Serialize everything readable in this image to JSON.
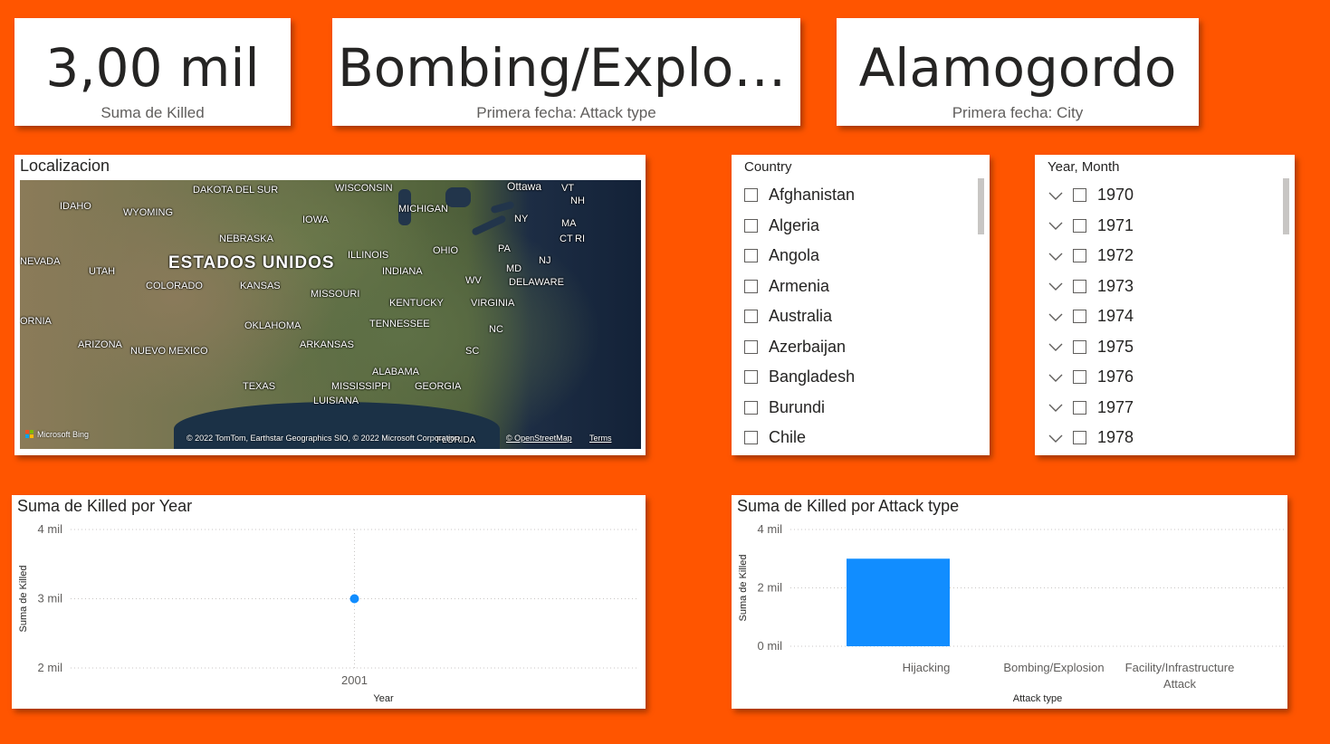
{
  "kpis": [
    {
      "value": "3,00 mil",
      "label": "Suma de Killed"
    },
    {
      "value": "Bombing/Explosi…",
      "label": "Primera fecha: Attack type"
    },
    {
      "value": "Alamogordo",
      "label": "Primera fecha: City"
    }
  ],
  "map": {
    "title": "Localizacion",
    "labels": {
      "idaho": "IDAHO",
      "wyoming": "WYOMING",
      "dakota_sur": "DAKOTA DEL SUR",
      "wisconsin": "WISCONSIN",
      "ottawa": "Ottawa",
      "vt": "VT",
      "nh": "NH",
      "michigan": "MICHIGAN",
      "iowa": "IOWA",
      "ny": "NY",
      "ma": "MA",
      "ct": "CT",
      "ri": "RI",
      "nebraska": "NEBRASKA",
      "nevada": "NEVADA",
      "utah": "UTAH",
      "estados_unidos": "ESTADOS UNIDOS",
      "illinois": "ILLINOIS",
      "ohio": "OHIO",
      "pa": "PA",
      "nj": "NJ",
      "md": "MD",
      "indiana": "INDIANA",
      "colorado": "COLORADO",
      "kansas": "KANSAS",
      "missouri": "MISSOURI",
      "wv": "WV",
      "delaware": "DELAWARE",
      "ornia": "ORNIA",
      "kentucky": "KENTUCKY",
      "virginia": "VIRGINIA",
      "oklahoma": "OKLAHOMA",
      "tennessee": "TENNESSEE",
      "nc": "NC",
      "arizona": "ARIZONA",
      "nuevo_mexico": "NUEVO MEXICO",
      "arkansas": "ARKANSAS",
      "sc": "SC",
      "alabama": "ALABAMA",
      "texas": "TEXAS",
      "mississippi": "MISSISSIPPI",
      "georgia": "GEORGIA",
      "luisiana": "LUISIANA",
      "florida": "FLORIDA"
    },
    "brand": "Microsoft Bing",
    "attribution": "© 2022 TomTom, Earthstar Geographics SIO, © 2022 Microsoft Corporation,",
    "osm_link": "© OpenStreetMap",
    "terms_link": "Terms"
  },
  "country_slicer": {
    "header": "Country",
    "items": [
      "Afghanistan",
      "Algeria",
      "Angola",
      "Armenia",
      "Australia",
      "Azerbaijan",
      "Bangladesh",
      "Burundi",
      "Chile"
    ]
  },
  "year_slicer": {
    "header": "Year, Month",
    "items": [
      "1970",
      "1971",
      "1972",
      "1973",
      "1974",
      "1975",
      "1976",
      "1977",
      "1978"
    ]
  },
  "chart_data": [
    {
      "type": "scatter",
      "title": "Suma de Killed por Year",
      "xlabel": "Year",
      "ylabel": "Suma de Killed",
      "x": [
        "2001"
      ],
      "values": [
        3000
      ],
      "ylim": [
        2000,
        4000
      ],
      "yticks": [
        {
          "value": 4000,
          "label": "4 mil"
        },
        {
          "value": 3000,
          "label": "3 mil"
        },
        {
          "value": 2000,
          "label": "2 mil"
        }
      ],
      "color": "#118DFF",
      "grid": true
    },
    {
      "type": "bar",
      "title": "Suma de Killed por Attack type",
      "xlabel": "Attack type",
      "ylabel": "Suma de Killed",
      "categories": [
        "Hijacking",
        "Bombing/Explosion",
        "Facility/Infrastructure Attack"
      ],
      "values": [
        3000,
        0,
        0
      ],
      "ylim": [
        0,
        4000
      ],
      "yticks": [
        {
          "value": 4000,
          "label": "4 mil"
        },
        {
          "value": 2000,
          "label": "2 mil"
        },
        {
          "value": 0,
          "label": "0 mil"
        }
      ],
      "color": "#118DFF",
      "grid": true
    }
  ]
}
